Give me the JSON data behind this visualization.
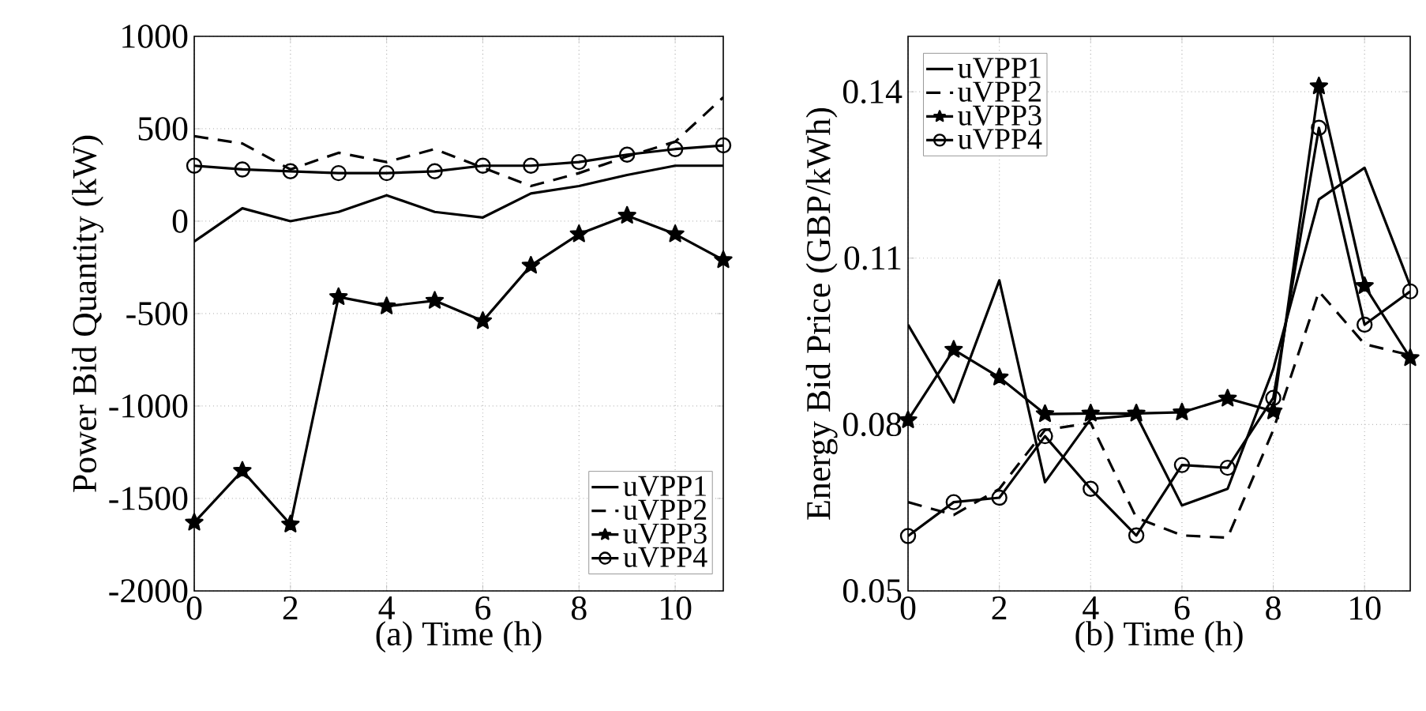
{
  "chart_data": [
    {
      "type": "line",
      "xlabel": "(a) Time (h)",
      "ylabel": "Power Bid Quantity (kW)",
      "x": [
        0,
        1,
        2,
        3,
        4,
        5,
        6,
        7,
        8,
        9,
        10,
        11
      ],
      "xlim": [
        0,
        11
      ],
      "xticks": [
        0,
        2,
        4,
        6,
        8,
        10
      ],
      "ylim": [
        -2000,
        1000
      ],
      "yticks": [
        -2000,
        -1500,
        -1000,
        -500,
        0,
        500,
        1000
      ],
      "grid": true,
      "legend": "bottom right",
      "series": [
        {
          "name": "uVPP1",
          "color": "#000000",
          "marker": "none",
          "line_style": "solid",
          "values": [
            -110,
            70,
            0,
            50,
            140,
            50,
            20,
            150,
            190,
            250,
            300,
            300
          ]
        },
        {
          "name": "uVPP2",
          "color": "#000000",
          "marker": "none",
          "line_style": "dashed",
          "values": [
            460,
            420,
            280,
            370,
            320,
            390,
            290,
            190,
            260,
            350,
            430,
            670
          ]
        },
        {
          "name": "uVPP3",
          "color": "#000000",
          "marker": "star",
          "line_style": "solid",
          "values": [
            -1630,
            -1350,
            -1640,
            -410,
            -460,
            -430,
            -540,
            -240,
            -70,
            30,
            -70,
            -210
          ]
        },
        {
          "name": "uVPP4",
          "color": "#000000",
          "marker": "circle",
          "line_style": "solid",
          "values": [
            300,
            280,
            270,
            260,
            260,
            270,
            300,
            300,
            320,
            360,
            390,
            410
          ]
        }
      ]
    },
    {
      "type": "line",
      "xlabel": "(b) Time (h)",
      "ylabel": "Energy Bid Price (GBP/kWh)",
      "x": [
        0,
        1,
        2,
        3,
        4,
        5,
        6,
        7,
        8,
        9,
        10,
        11
      ],
      "xlim": [
        0,
        11
      ],
      "xticks": [
        0,
        2,
        4,
        6,
        8,
        10
      ],
      "ylim": [
        0.05,
        0.15
      ],
      "yticks": [
        0.05,
        0.08,
        0.11,
        0.14
      ],
      "grid": true,
      "legend": "top left",
      "series": [
        {
          "name": "uVPP1",
          "color": "#000000",
          "marker": "none",
          "line_style": "solid",
          "values": [
            0.098,
            0.084,
            0.106,
            0.0696,
            0.081,
            0.0817,
            0.0654,
            0.0684,
            0.09,
            0.1206,
            0.1263,
            0.105
          ]
        },
        {
          "name": "uVPP2",
          "color": "#000000",
          "marker": "none",
          "line_style": "dashed",
          "values": [
            0.066,
            0.0637,
            0.0684,
            0.079,
            0.0803,
            0.0632,
            0.06,
            0.0596,
            0.079,
            0.104,
            0.0945,
            0.0925
          ]
        },
        {
          "name": "uVPP3",
          "color": "#000000",
          "marker": "star",
          "line_style": "solid",
          "values": [
            0.0808,
            0.0935,
            0.0885,
            0.0819,
            0.082,
            0.082,
            0.0822,
            0.0847,
            0.0824,
            0.141,
            0.105,
            0.092
          ]
        },
        {
          "name": "uVPP4",
          "color": "#000000",
          "marker": "circle",
          "line_style": "solid",
          "values": [
            0.0599,
            0.066,
            0.0668,
            0.0779,
            0.0684,
            0.06,
            0.0727,
            0.0722,
            0.0848,
            0.1335,
            0.098,
            0.104
          ]
        }
      ]
    }
  ]
}
